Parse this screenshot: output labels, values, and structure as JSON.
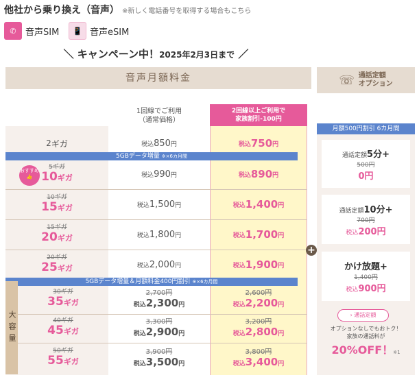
{
  "header": {
    "title": "他社から乗り換え（音声）",
    "note": "※新しく電話番号を取得する場合もこちら"
  },
  "sim_tabs": [
    {
      "label": "音声SIM",
      "icon": "sim-card-icon"
    },
    {
      "label": "音声eSIM",
      "icon": "esim-phone-icon"
    }
  ],
  "campaign": {
    "text": "＼ キャンペーン中！",
    "date": "2025年2月3日まで",
    "tail": " ／"
  },
  "main_header": "音声月額料金",
  "option_header": {
    "line1": "通話定額",
    "line2": "オプション"
  },
  "columns": {
    "single": {
      "line1": "1回線でご利用",
      "line2": "（通常価格）"
    },
    "family": {
      "line1": "2回線以上ご利用で",
      "line2": "家族割引-100円"
    }
  },
  "tax_label": "税込",
  "yen": "円",
  "giga": "ギガ",
  "badge": {
    "line1": "おすすめ",
    "line2": "👍"
  },
  "banners": {
    "b1": {
      "text": "5GBデータ増量",
      "note": "※×6カ月間"
    },
    "b2": {
      "text": "5GBデータ増量＆月額料金400円割引",
      "note": "※×6カ月間"
    }
  },
  "large_label": "大容量",
  "rows": [
    {
      "gb": "2",
      "single": "850",
      "family": "750"
    },
    {
      "old_gb": "5ギガ",
      "gb": "10",
      "single": "990",
      "family": "890"
    },
    {
      "old_gb": "10ギガ",
      "gb": "15",
      "single": "1,500",
      "family": "1,400"
    },
    {
      "old_gb": "15ギガ",
      "gb": "20",
      "single": "1,800",
      "family": "1,700"
    },
    {
      "old_gb": "20ギガ",
      "gb": "25",
      "single": "2,000",
      "family": "1,900"
    },
    {
      "old_gb": "30ギガ",
      "gb": "35",
      "single_old": "2,700円",
      "single": "2,300",
      "family_old": "2,600円",
      "family": "2,200"
    },
    {
      "old_gb": "40ギガ",
      "gb": "45",
      "single_old": "3,300円",
      "single": "2,900",
      "family_old": "3,200円",
      "family": "2,800"
    },
    {
      "old_gb": "50ギガ",
      "gb": "55",
      "single_old": "3,900円",
      "single": "3,500",
      "family_old": "3,800円",
      "family": "3,400"
    }
  ],
  "option": {
    "bar": "月額500円割引 6カ月間",
    "card1": {
      "prefix": "通話定額",
      "name": "5分+",
      "old": "500円",
      "price": "0円"
    },
    "card2": {
      "prefix": "通話定額",
      "name": "10分+",
      "old": "700円",
      "tax": "税込",
      "price": "200円"
    },
    "card3": {
      "name": "かけ放題+",
      "old": "1,400円",
      "tax": "税込",
      "price": "900円"
    },
    "button": "› 通話定額",
    "note1": "オプションなしでもおトク！",
    "note2": "家族の通話料が",
    "off": "20%OFF！",
    "off_note": "※1"
  },
  "colors": {
    "accent": "#e65a9a",
    "blue": "#5b84cd",
    "beige": "#e6dcd1",
    "yellow": "#fff7c9"
  }
}
